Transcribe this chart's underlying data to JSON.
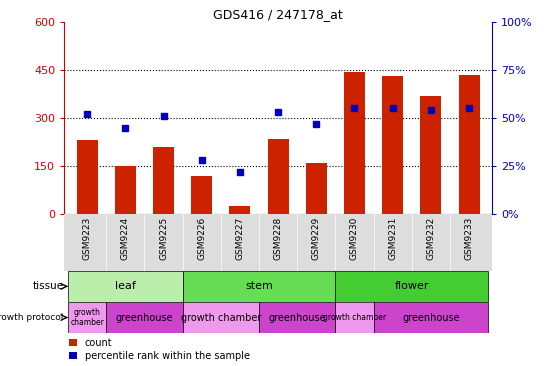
{
  "title": "GDS416 / 247178_at",
  "samples": [
    "GSM9223",
    "GSM9224",
    "GSM9225",
    "GSM9226",
    "GSM9227",
    "GSM9228",
    "GSM9229",
    "GSM9230",
    "GSM9231",
    "GSM9232",
    "GSM9233"
  ],
  "counts": [
    230,
    150,
    210,
    120,
    25,
    235,
    160,
    445,
    430,
    370,
    435
  ],
  "percentiles": [
    52,
    45,
    51,
    28,
    22,
    53,
    47,
    55,
    55,
    54,
    55
  ],
  "ylim_left": [
    0,
    600
  ],
  "ylim_right": [
    0,
    100
  ],
  "yticks_left": [
    0,
    150,
    300,
    450,
    600
  ],
  "yticks_right": [
    0,
    25,
    50,
    75,
    100
  ],
  "tissue_groups": [
    {
      "label": "leaf",
      "start": 0,
      "end": 3,
      "color": "#BBEEAA"
    },
    {
      "label": "stem",
      "start": 3,
      "end": 7,
      "color": "#66DD55"
    },
    {
      "label": "flower",
      "start": 7,
      "end": 11,
      "color": "#44CC33"
    }
  ],
  "protocol_groups": [
    {
      "label": "growth\nchamber",
      "start": 0,
      "end": 1,
      "color": "#EE99EE"
    },
    {
      "label": "greenhouse",
      "start": 1,
      "end": 3,
      "color": "#DD55DD"
    },
    {
      "label": "growth chamber",
      "start": 3,
      "end": 5,
      "color": "#EE99EE"
    },
    {
      "label": "greenhouse",
      "start": 5,
      "end": 7,
      "color": "#DD55DD"
    },
    {
      "label": "growth chamber",
      "start": 7,
      "end": 8,
      "color": "#EE99EE"
    },
    {
      "label": "greenhouse",
      "start": 8,
      "end": 11,
      "color": "#DD55DD"
    }
  ],
  "bar_color": "#CC2200",
  "dot_color": "#0000BB",
  "left_axis_color": "#CC0000",
  "right_axis_color": "#0000CC",
  "bar_width": 0.55,
  "gridline_vals": [
    150,
    300,
    450
  ],
  "bg_color": "#FFFFFF",
  "plot_bg": "#FFFFFF"
}
